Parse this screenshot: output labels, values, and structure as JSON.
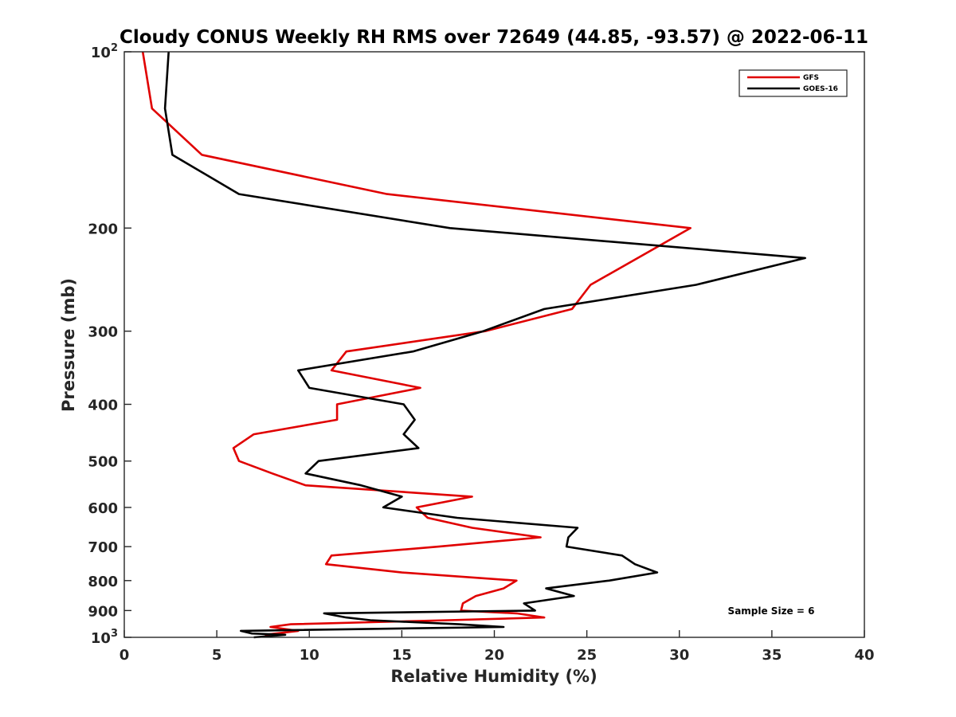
{
  "chart_data": {
    "type": "line",
    "title": "Cloudy CONUS Weekly RH RMS over 72649 (44.85, -93.57) @ 2022-06-11",
    "xlabel": "Relative Humidity (%)",
    "ylabel": "Pressure (mb)",
    "xlim": [
      0,
      40
    ],
    "ylim": [
      100,
      1000
    ],
    "y_scale": "log",
    "y_reversed": true,
    "grid": false,
    "legend_position": "top-right",
    "x_ticks": [
      0,
      5,
      10,
      15,
      20,
      25,
      30,
      35,
      40
    ],
    "x_tick_labels": [
      "0",
      "5",
      "10",
      "15",
      "20",
      "25",
      "30",
      "35",
      "40"
    ],
    "y_ticks": [
      100,
      200,
      300,
      400,
      500,
      600,
      700,
      800,
      900,
      1000
    ],
    "y_tick_labels": [
      {
        "base": "10",
        "exp": "2"
      },
      {
        "base": "200",
        "exp": ""
      },
      {
        "base": "300",
        "exp": ""
      },
      {
        "base": "400",
        "exp": ""
      },
      {
        "base": "500",
        "exp": ""
      },
      {
        "base": "600",
        "exp": ""
      },
      {
        "base": "700",
        "exp": ""
      },
      {
        "base": "800",
        "exp": ""
      },
      {
        "base": "900",
        "exp": ""
      },
      {
        "base": "10",
        "exp": "3"
      }
    ],
    "annotation": "Sample Size = 6",
    "series": [
      {
        "name": "GFS",
        "color": "#e00000",
        "points": [
          [
            1.0,
            100
          ],
          [
            1.5,
            125
          ],
          [
            4.2,
            150
          ],
          [
            14.2,
            175
          ],
          [
            30.6,
            200
          ],
          [
            25.2,
            250
          ],
          [
            24.2,
            275
          ],
          [
            19.5,
            300
          ],
          [
            12.0,
            325
          ],
          [
            11.2,
            350
          ],
          [
            16.0,
            375
          ],
          [
            11.5,
            400
          ],
          [
            11.5,
            425
          ],
          [
            7.0,
            450
          ],
          [
            5.9,
            475
          ],
          [
            6.2,
            500
          ],
          [
            8.0,
            525
          ],
          [
            9.8,
            550
          ],
          [
            18.8,
            575
          ],
          [
            15.8,
            600
          ],
          [
            16.4,
            625
          ],
          [
            18.8,
            650
          ],
          [
            22.5,
            675
          ],
          [
            17.0,
            700
          ],
          [
            11.2,
            725
          ],
          [
            10.9,
            750
          ],
          [
            15.0,
            775
          ],
          [
            21.2,
            800
          ],
          [
            20.5,
            825
          ],
          [
            19.0,
            850
          ],
          [
            18.3,
            875
          ],
          [
            18.2,
            900
          ],
          [
            21.2,
            910
          ],
          [
            22.7,
            925
          ],
          [
            17.5,
            935
          ],
          [
            9.0,
            950
          ],
          [
            7.9,
            960
          ],
          [
            9.4,
            975
          ],
          [
            7.6,
            990
          ]
        ]
      },
      {
        "name": "GOES-16",
        "color": "#000000",
        "points": [
          [
            2.4,
            100
          ],
          [
            2.2,
            125
          ],
          [
            2.6,
            150
          ],
          [
            6.2,
            175
          ],
          [
            17.6,
            200
          ],
          [
            36.8,
            225
          ],
          [
            30.9,
            250
          ],
          [
            22.7,
            275
          ],
          [
            19.4,
            300
          ],
          [
            15.6,
            325
          ],
          [
            9.4,
            350
          ],
          [
            10.0,
            375
          ],
          [
            15.1,
            400
          ],
          [
            15.7,
            425
          ],
          [
            15.1,
            450
          ],
          [
            15.9,
            475
          ],
          [
            10.5,
            500
          ],
          [
            9.8,
            525
          ],
          [
            12.8,
            550
          ],
          [
            15.0,
            575
          ],
          [
            14.0,
            600
          ],
          [
            18.0,
            625
          ],
          [
            24.5,
            650
          ],
          [
            24.0,
            675
          ],
          [
            23.9,
            700
          ],
          [
            26.9,
            725
          ],
          [
            27.6,
            750
          ],
          [
            28.8,
            775
          ],
          [
            26.2,
            800
          ],
          [
            22.8,
            825
          ],
          [
            24.3,
            850
          ],
          [
            21.6,
            875
          ],
          [
            22.2,
            900
          ],
          [
            10.8,
            910
          ],
          [
            12.0,
            925
          ],
          [
            13.3,
            935
          ],
          [
            18.1,
            950
          ],
          [
            20.5,
            960
          ],
          [
            6.3,
            975
          ],
          [
            6.9,
            985
          ],
          [
            8.7,
            990
          ],
          [
            7.0,
            1000
          ]
        ]
      }
    ]
  }
}
